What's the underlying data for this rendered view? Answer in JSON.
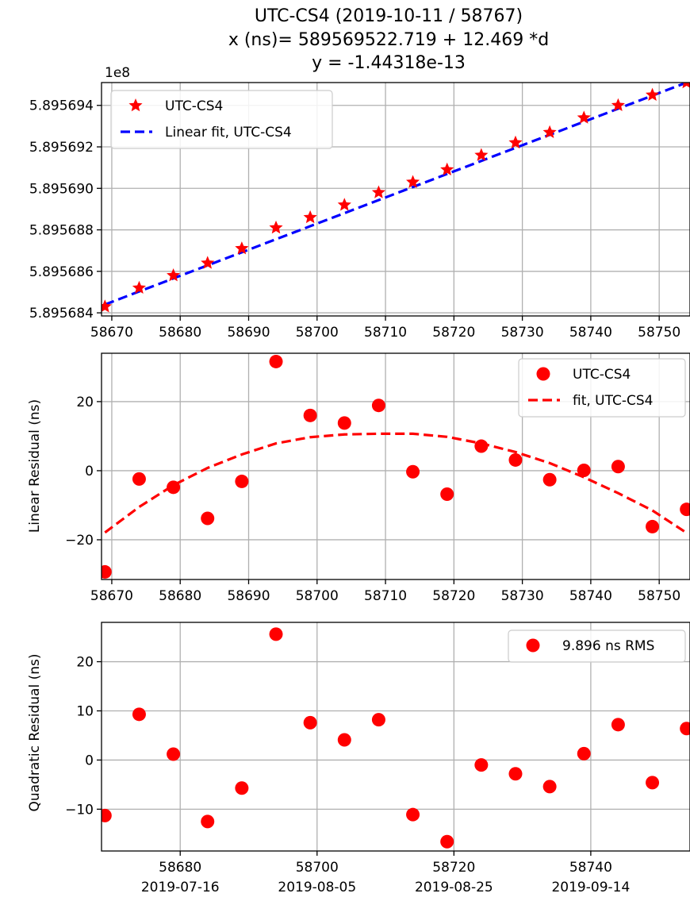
{
  "figure": {
    "title_lines": [
      "UTC-CS4 (2019-10-11 / 58767)",
      "x (ns)= 589569522.719 + 12.469 *d",
      "y = -1.44318e-13"
    ]
  },
  "colors": {
    "points": "#ff0000",
    "fit_top": "#0000ff",
    "fit_mid": "#ff0000",
    "grid": "#b0b0b0",
    "axes": "#000000"
  },
  "chart_data": [
    {
      "type": "scatter",
      "panel": "top",
      "offset_label": "1e8",
      "xlim": [
        58668.5,
        58754.5
      ],
      "ylim": [
        5.89568385,
        5.8956951
      ],
      "grid": true,
      "legend_position": "top-left",
      "xticks": [
        {
          "v": 58670,
          "label": "58670"
        },
        {
          "v": 58680,
          "label": "58680"
        },
        {
          "v": 58690,
          "label": "58690"
        },
        {
          "v": 58700,
          "label": "58700"
        },
        {
          "v": 58710,
          "label": "58710"
        },
        {
          "v": 58720,
          "label": "58720"
        },
        {
          "v": 58730,
          "label": "58730"
        },
        {
          "v": 58740,
          "label": "58740"
        },
        {
          "v": 58750,
          "label": "58750"
        }
      ],
      "yticks": [
        {
          "v": 5.895684,
          "label": "5.895684"
        },
        {
          "v": 5.895686,
          "label": "5.895686"
        },
        {
          "v": 5.895688,
          "label": "5.895688"
        },
        {
          "v": 5.89569,
          "label": "5.895690"
        },
        {
          "v": 5.895692,
          "label": "5.895692"
        },
        {
          "v": 5.895694,
          "label": "5.895694"
        }
      ],
      "series": [
        {
          "name": "UTC-CS4",
          "kind": "points",
          "marker": "star",
          "x": [
            58669,
            58674,
            58679,
            58684,
            58689,
            58694,
            58699,
            58704,
            58709,
            58714,
            58719,
            58724,
            58729,
            58734,
            58739,
            58744,
            58749,
            58754
          ],
          "y": [
            5.8956843,
            5.8956852,
            5.8956858,
            5.8956864,
            5.8956871,
            5.8956881,
            5.8956886,
            5.8956892,
            5.8956898,
            5.8956903,
            5.8956909,
            5.8956916,
            5.8956922,
            5.8956927,
            5.8956934,
            5.895694,
            5.8956945,
            5.8956951
          ]
        },
        {
          "name": "Linear fit, UTC-CS4",
          "kind": "line",
          "style": "dashed",
          "x": [
            58669,
            58754
          ],
          "y": [
            5.8956844,
            5.8956951
          ]
        }
      ]
    },
    {
      "type": "scatter",
      "panel": "middle",
      "ylabel": "Linear Residual (ns)",
      "xlim": [
        58668.5,
        58754.5
      ],
      "ylim": [
        -31.5,
        34
      ],
      "grid": true,
      "legend_position": "top-right",
      "xticks": [
        {
          "v": 58670,
          "label": "58670"
        },
        {
          "v": 58680,
          "label": "58680"
        },
        {
          "v": 58690,
          "label": "58690"
        },
        {
          "v": 58700,
          "label": "58700"
        },
        {
          "v": 58710,
          "label": "58710"
        },
        {
          "v": 58720,
          "label": "58720"
        },
        {
          "v": 58730,
          "label": "58730"
        },
        {
          "v": 58740,
          "label": "58740"
        },
        {
          "v": 58750,
          "label": "58750"
        }
      ],
      "yticks": [
        {
          "v": -20,
          "label": "−20"
        },
        {
          "v": 0,
          "label": "0"
        },
        {
          "v": 20,
          "label": "20"
        }
      ],
      "series": [
        {
          "name": "UTC-CS4",
          "kind": "points",
          "marker": "circle",
          "x": [
            58669,
            58674,
            58679,
            58684,
            58689,
            58694,
            58699,
            58704,
            58709,
            58714,
            58719,
            58724,
            58729,
            58734,
            58739,
            58744,
            58749,
            58754
          ],
          "y": [
            -29.3,
            -2.4,
            -4.8,
            -13.8,
            -3.1,
            31.6,
            16,
            13.8,
            18.9,
            -0.3,
            -6.8,
            7.1,
            3.1,
            -2.6,
            0.1,
            1.2,
            -16.2,
            -11.2
          ]
        },
        {
          "name": "fit, UTC-CS4",
          "kind": "line",
          "style": "dashed",
          "x": [
            58669,
            58674,
            58679,
            58684,
            58689,
            58694,
            58699,
            58704,
            58709,
            58714,
            58719,
            58724,
            58729,
            58734,
            58739,
            58744,
            58749,
            58754
          ],
          "y": [
            -17.9,
            -10.5,
            -4.2,
            0.8,
            4.7,
            7.9,
            9.7,
            10.5,
            10.7,
            10.7,
            9.8,
            7.9,
            5.4,
            2.2,
            -1.9,
            -6.5,
            -11.5,
            -18
          ]
        }
      ]
    },
    {
      "type": "scatter",
      "panel": "bottom",
      "ylabel": "Quadratic Residual (ns)",
      "xlim": [
        58668.5,
        58754.5
      ],
      "ylim": [
        -18.5,
        28
      ],
      "grid": true,
      "legend_position": "top-right",
      "xticks": [
        {
          "v": 58680,
          "label": "58680",
          "label2": "2019-07-16"
        },
        {
          "v": 58700,
          "label": "58700",
          "label2": "2019-08-05"
        },
        {
          "v": 58720,
          "label": "58720",
          "label2": "2019-08-25"
        },
        {
          "v": 58740,
          "label": "58740",
          "label2": "2019-09-14"
        }
      ],
      "yticks": [
        {
          "v": -10,
          "label": "−10"
        },
        {
          "v": 0,
          "label": "0"
        },
        {
          "v": 10,
          "label": "10"
        },
        {
          "v": 20,
          "label": "20"
        }
      ],
      "series": [
        {
          "name": "9.896 ns RMS",
          "kind": "points",
          "marker": "circle",
          "x": [
            58669,
            58674,
            58679,
            58684,
            58689,
            58694,
            58699,
            58704,
            58709,
            58714,
            58719,
            58724,
            58729,
            58734,
            58739,
            58744,
            58749,
            58754
          ],
          "y": [
            -11.3,
            9.3,
            1.2,
            -12.5,
            -5.7,
            25.6,
            7.6,
            4.1,
            8.2,
            -11.1,
            -16.6,
            -1,
            -2.8,
            -5.4,
            1.3,
            7.2,
            -4.6,
            6.4
          ]
        }
      ]
    }
  ]
}
